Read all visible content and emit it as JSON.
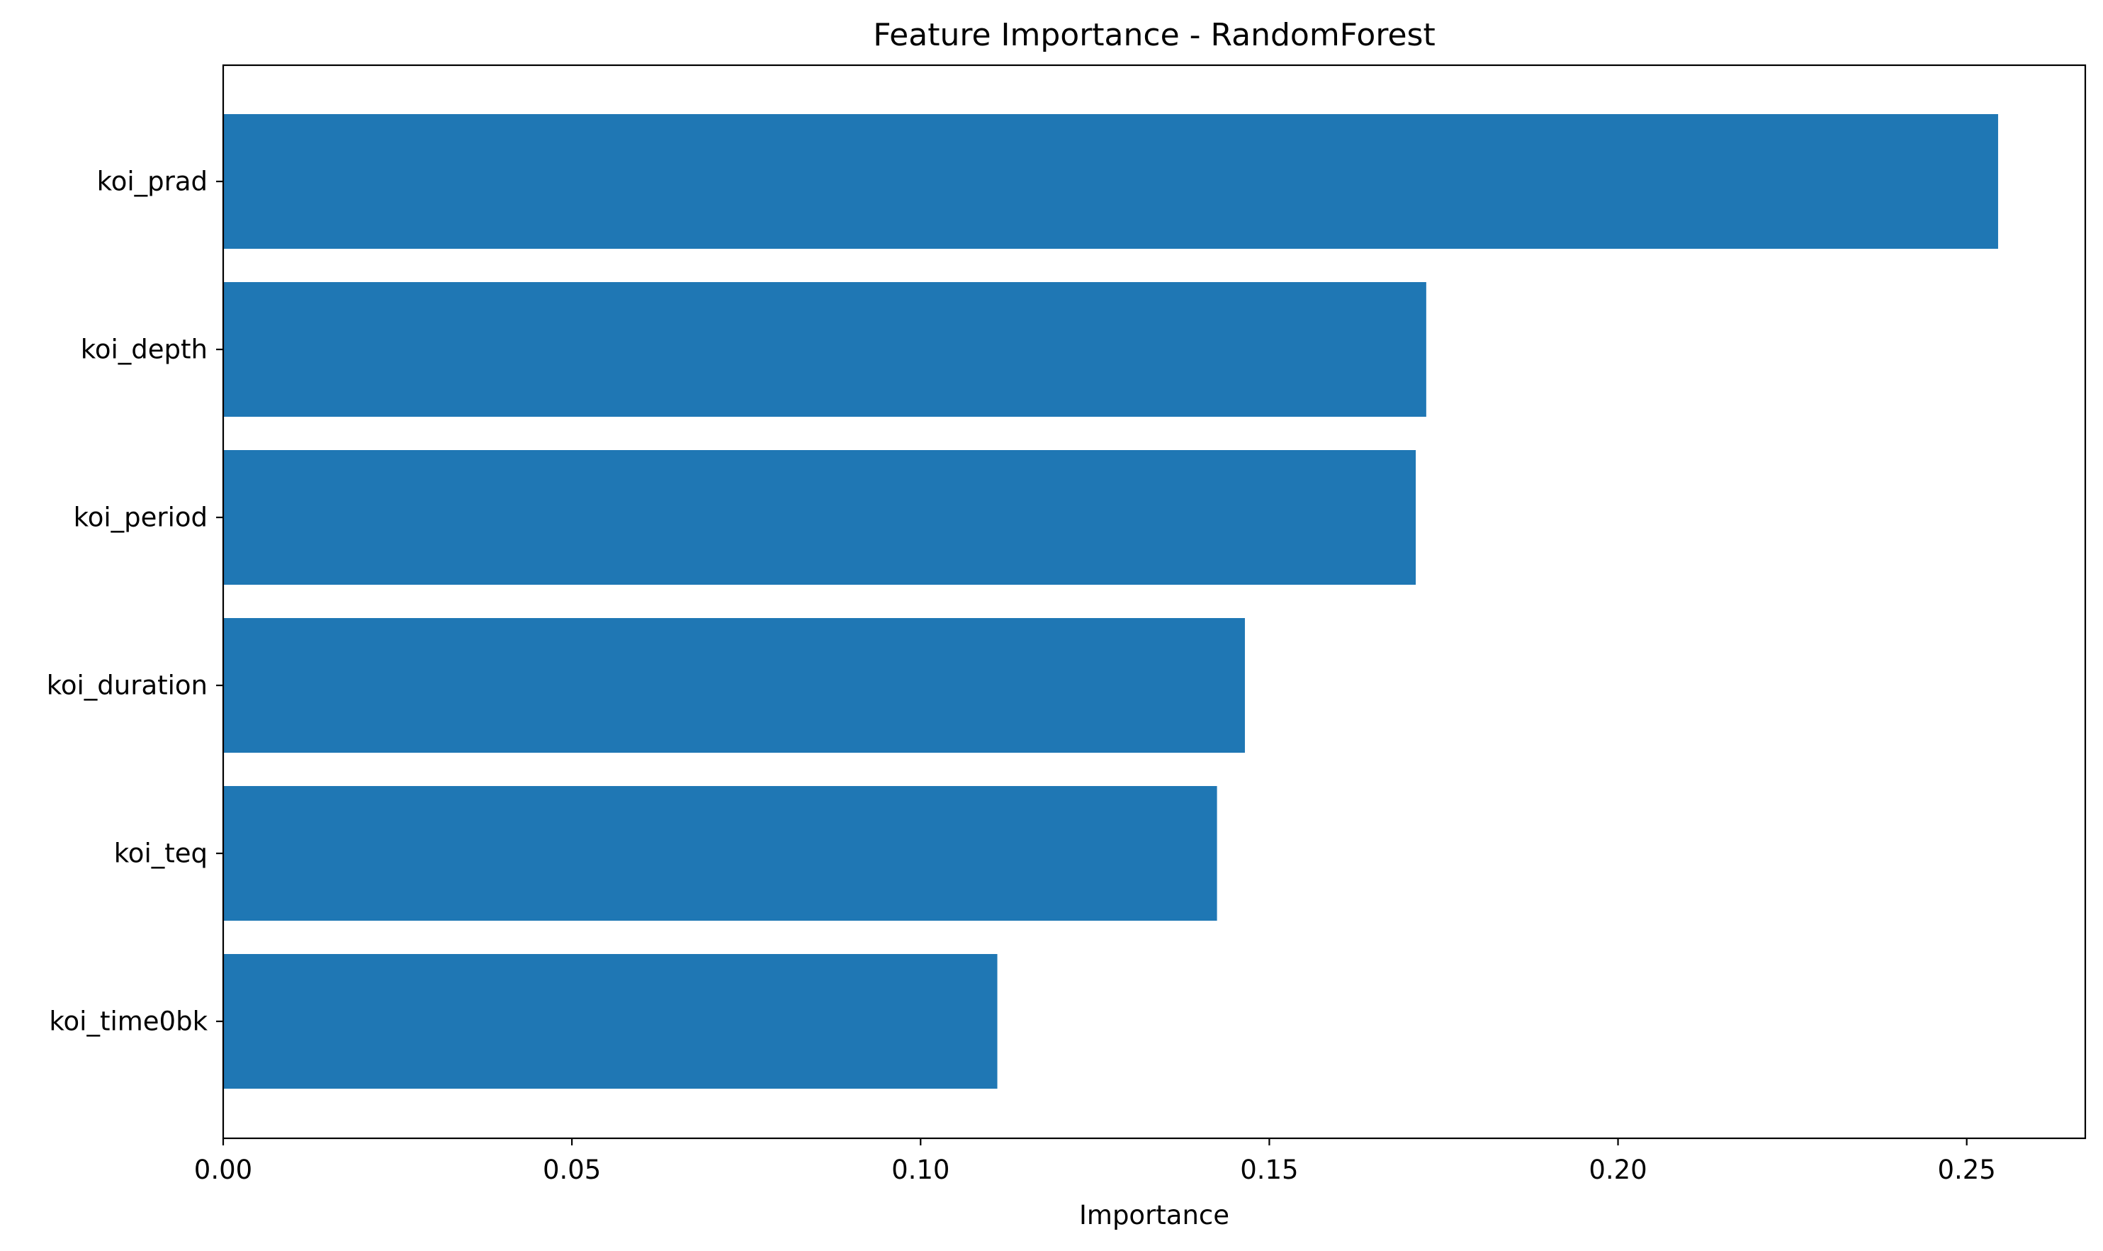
{
  "chart_data": {
    "type": "bar",
    "orientation": "horizontal",
    "title": "Feature Importance - RandomForest",
    "xlabel": "Importance",
    "ylabel": "",
    "categories": [
      "koi_prad",
      "koi_depth",
      "koi_period",
      "koi_duration",
      "koi_teq",
      "koi_time0bk"
    ],
    "values": [
      0.2545,
      0.1725,
      0.171,
      0.1465,
      0.1425,
      0.111
    ],
    "xlim": [
      0,
      0.267
    ],
    "x_ticks": [
      0.0,
      0.05,
      0.1,
      0.15,
      0.2,
      0.25
    ],
    "x_tick_labels": [
      "0.00",
      "0.05",
      "0.10",
      "0.15",
      "0.20",
      "0.25"
    ],
    "bar_color": "#1f77b4",
    "grid": false,
    "legend": "none"
  }
}
